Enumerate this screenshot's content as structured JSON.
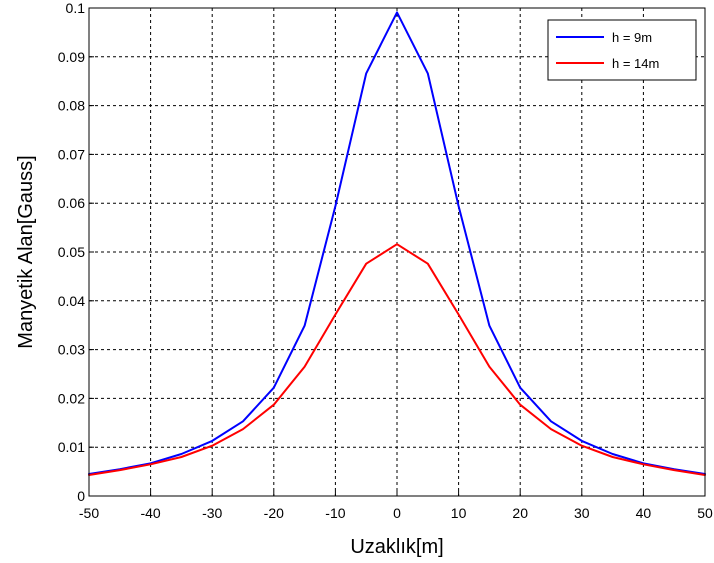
{
  "chart_data": {
    "type": "line",
    "title": "",
    "xlabel": "Uzaklık[m]",
    "ylabel": "Manyetik Alan[Gauss]",
    "xlim": [
      -50,
      50
    ],
    "ylim": [
      0,
      0.1
    ],
    "grid": true,
    "legend_position": "top-right",
    "x_ticks": [
      "-50",
      "-40",
      "-30",
      "-20",
      "-10",
      "0",
      "10",
      "20",
      "30",
      "40",
      "50"
    ],
    "y_ticks": [
      "0",
      "0.01",
      "0.02",
      "0.03",
      "0.04",
      "0.05",
      "0.06",
      "0.07",
      "0.08",
      "0.09",
      "0.1"
    ],
    "x": [
      -50,
      -45,
      -40,
      -35,
      -30,
      -25,
      -20,
      -15,
      -10,
      -5,
      0,
      5,
      10,
      15,
      20,
      25,
      30,
      35,
      40,
      45,
      50
    ],
    "series": [
      {
        "name": "h = 9m",
        "color": "#0000ff",
        "values": [
          0.0045,
          0.0055,
          0.0067,
          0.0086,
          0.0113,
          0.0153,
          0.0222,
          0.0349,
          0.0594,
          0.0866,
          0.0991,
          0.0866,
          0.0594,
          0.0349,
          0.0222,
          0.0153,
          0.0113,
          0.0086,
          0.0067,
          0.0055,
          0.0045
        ]
      },
      {
        "name": "h = 14m",
        "color": "#ff0000",
        "values": [
          0.0043,
          0.0053,
          0.0065,
          0.008,
          0.0103,
          0.0137,
          0.0187,
          0.0265,
          0.0372,
          0.0476,
          0.0516,
          0.0476,
          0.0372,
          0.0265,
          0.0187,
          0.0137,
          0.0103,
          0.008,
          0.0065,
          0.0053,
          0.0043
        ]
      }
    ]
  }
}
